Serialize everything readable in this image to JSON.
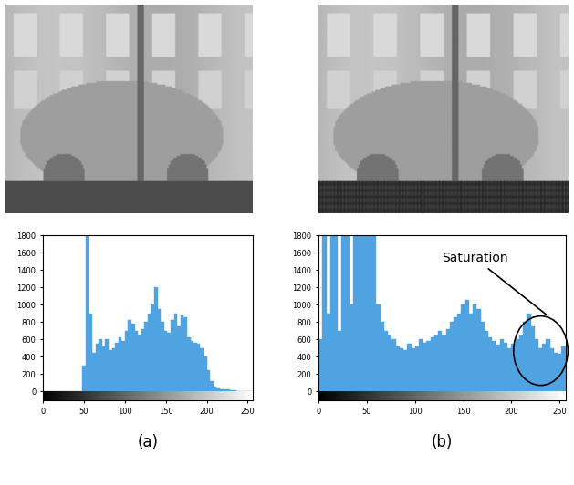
{
  "chart_data": [
    {
      "type": "histogram",
      "title": "(a)",
      "bins": [
        0,
        4,
        8,
        12,
        16,
        20,
        24,
        28,
        32,
        36,
        40,
        44,
        48,
        52,
        56,
        60,
        64,
        68,
        72,
        76,
        80,
        84,
        88,
        92,
        96,
        100,
        104,
        108,
        112,
        116,
        120,
        124,
        128,
        132,
        136,
        140,
        144,
        148,
        152,
        156,
        160,
        164,
        168,
        172,
        176,
        180,
        184,
        188,
        192,
        196,
        200,
        204,
        208,
        212,
        216,
        220,
        224,
        228,
        232,
        236,
        240,
        244,
        248,
        252,
        256
      ],
      "counts": [
        0,
        0,
        0,
        0,
        0,
        0,
        0,
        0,
        0,
        0,
        0,
        0,
        300,
        1850,
        900,
        450,
        550,
        600,
        520,
        600,
        480,
        500,
        560,
        620,
        580,
        700,
        820,
        780,
        700,
        650,
        720,
        800,
        900,
        1000,
        1200,
        950,
        800,
        700,
        680,
        820,
        900,
        750,
        880,
        850,
        620,
        580,
        560,
        550,
        500,
        400,
        250,
        120,
        60,
        40,
        30,
        25,
        20,
        15,
        10,
        5,
        0,
        0,
        0,
        0
      ],
      "color": "#4fa3e0",
      "xlim": [
        0,
        256
      ],
      "xticks": [
        0,
        50,
        100,
        150,
        200,
        250
      ],
      "ylim": [
        -100,
        1800
      ],
      "yticks": [
        0,
        200,
        400,
        600,
        800,
        1000,
        1200,
        1400,
        1600,
        1800
      ]
    },
    {
      "type": "histogram",
      "title": "(b)",
      "bins": [
        0,
        4,
        8,
        12,
        16,
        20,
        24,
        28,
        32,
        36,
        40,
        44,
        48,
        52,
        56,
        60,
        64,
        68,
        72,
        76,
        80,
        84,
        88,
        92,
        96,
        100,
        104,
        108,
        112,
        116,
        120,
        124,
        128,
        132,
        136,
        140,
        144,
        148,
        152,
        156,
        160,
        164,
        168,
        172,
        176,
        180,
        184,
        188,
        192,
        196,
        200,
        204,
        208,
        212,
        216,
        220,
        224,
        228,
        232,
        236,
        240,
        244,
        248,
        252,
        256
      ],
      "counts": [
        600,
        1850,
        900,
        1850,
        1850,
        700,
        1850,
        1850,
        1000,
        1850,
        1850,
        1850,
        1850,
        1850,
        1850,
        1000,
        800,
        700,
        650,
        600,
        520,
        500,
        480,
        550,
        500,
        520,
        600,
        560,
        580,
        620,
        650,
        700,
        640,
        720,
        800,
        850,
        900,
        1000,
        1050,
        900,
        1000,
        950,
        800,
        700,
        620,
        580,
        540,
        600,
        560,
        500,
        550,
        600,
        650,
        800,
        900,
        750,
        600,
        500,
        550,
        600,
        500,
        450,
        430,
        520
      ],
      "color": "#4fa3e0",
      "xlim": [
        0,
        256
      ],
      "xticks": [
        0,
        50,
        100,
        150,
        200,
        250
      ],
      "ylim": [
        -100,
        1800
      ],
      "yticks": [
        0,
        200,
        400,
        600,
        800,
        1000,
        1200,
        1400,
        1600,
        1800
      ],
      "annotations": [
        "Saturation"
      ]
    }
  ]
}
